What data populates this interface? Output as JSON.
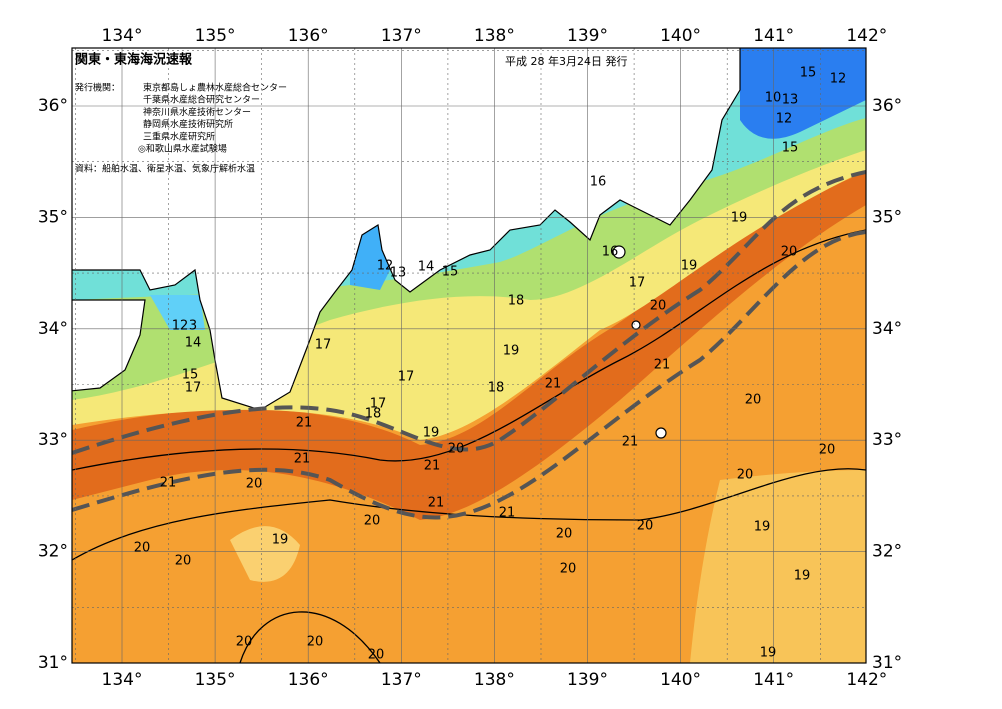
{
  "header": {
    "title": "関東・東海海況速報",
    "date": "平成 28 年3月24日 発行",
    "issuer_label": "発行機関：",
    "issuers": [
      "東京都島しょ農林水産総合センター",
      "千葉県水産総合研究センター",
      "神奈川県水産技術センター",
      "静岡県水産技術研究所",
      "三重県水産研究所",
      "◎和歌山県水産試験場"
    ],
    "sources": "資料：船舶水温、衛星水温、気象庁解析水温"
  },
  "map": {
    "lon_labels": [
      "134°",
      "135°",
      "136°",
      "137°",
      "138°",
      "139°",
      "140°",
      "141°",
      "142°"
    ],
    "lat_labels": [
      "36°",
      "35°",
      "34°",
      "33°",
      "32°",
      "31°"
    ],
    "contour_labels": [
      "15",
      "12",
      "10",
      "13",
      "12",
      "15",
      "16",
      "16",
      "19",
      "20",
      "19",
      "17",
      "20",
      "18",
      "12",
      "13",
      "14",
      "15",
      "12",
      "3",
      "14",
      "15",
      "17",
      "17",
      "19",
      "17",
      "18",
      "21",
      "21",
      "20",
      "17",
      "18",
      "21",
      "19",
      "20",
      "21",
      "20",
      "21",
      "21",
      "20",
      "21",
      "20",
      "21",
      "21",
      "20",
      "20",
      "20",
      "19",
      "19",
      "20",
      "20",
      "20",
      "19",
      "20",
      "20",
      "20",
      "19"
    ]
  }
}
